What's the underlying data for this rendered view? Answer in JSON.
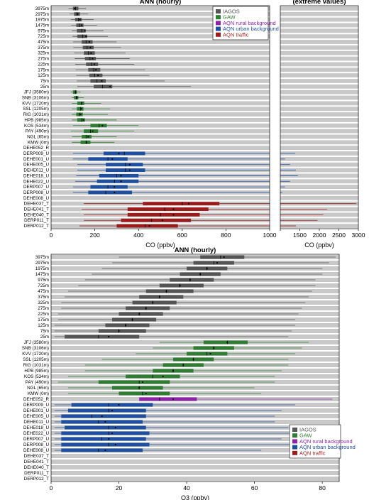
{
  "chart_data": [
    {
      "type": "boxplot",
      "title": "ANN (hourly)",
      "xlabel": "CO (ppbv)",
      "xlim": [
        0,
        1000
      ],
      "xticks": [
        "0",
        "200",
        "400",
        "600",
        "800",
        "1000"
      ],
      "categories": [
        "3975m",
        "2975m",
        "1975m",
        "1475m",
        "975m",
        "725m",
        "475m",
        "375m",
        "325m",
        "275m",
        "225m",
        "175m",
        "125m",
        "75m",
        "25m",
        "JFJ (3580m)",
        "SNB (3106m)",
        "KVV (1720m)",
        "SSL (1205m)",
        "RIG (1031m)",
        "HPB (985m)",
        "KOS (534m)",
        "PAY (490m)",
        "NGL (65m)",
        "KMW (0m)",
        "DEHE052_R",
        "DERP009_U",
        "DEHE001_U",
        "DEHE005_U",
        "DEHE011_U",
        "DEHE018_U",
        "DEHE022_U",
        "DERP007_U",
        "DERP008_U",
        "DEHE008_U",
        "DEHE037_T",
        "DEHE041_T",
        "DEHE040_T",
        "DERP011_T",
        "DERP012_T"
      ],
      "groups": [
        "IAGOS",
        "IAGOS",
        "IAGOS",
        "IAGOS",
        "IAGOS",
        "IAGOS",
        "IAGOS",
        "IAGOS",
        "IAGOS",
        "IAGOS",
        "IAGOS",
        "IAGOS",
        "IAGOS",
        "IAGOS",
        "IAGOS",
        "GAW",
        "GAW",
        "GAW",
        "GAW",
        "GAW",
        "GAW",
        "GAW",
        "GAW",
        "GAW",
        "GAW",
        "AQN rural background",
        "AQN urban background",
        "AQN urban background",
        "AQN urban background",
        "AQN urban background",
        "AQN urban background",
        "AQN urban background",
        "AQN urban background",
        "AQN urban background",
        "AQN urban background",
        "AQN traffic",
        "AQN traffic",
        "AQN traffic",
        "AQN traffic",
        "AQN traffic"
      ],
      "boxes": [
        [
          80,
          100,
          112,
          125,
          160
        ],
        [
          85,
          105,
          118,
          132,
          170
        ],
        [
          90,
          110,
          125,
          140,
          195
        ],
        [
          92,
          115,
          130,
          148,
          210
        ],
        [
          95,
          118,
          140,
          158,
          240
        ],
        [
          98,
          120,
          145,
          165,
          260
        ],
        [
          100,
          140,
          160,
          190,
          300
        ],
        [
          102,
          145,
          165,
          195,
          320
        ],
        [
          105,
          150,
          170,
          200,
          340
        ],
        [
          108,
          155,
          178,
          205,
          360
        ],
        [
          110,
          160,
          185,
          215,
          380
        ],
        [
          112,
          170,
          195,
          225,
          430
        ],
        [
          115,
          175,
          200,
          235,
          450
        ],
        [
          118,
          180,
          210,
          250,
          520
        ],
        [
          120,
          195,
          235,
          280,
          640
        ],
        [
          90,
          100,
          112,
          118,
          135
        ],
        [
          95,
          105,
          115,
          125,
          150
        ],
        [
          95,
          120,
          140,
          152,
          230
        ],
        [
          95,
          118,
          135,
          148,
          270
        ],
        [
          95,
          115,
          130,
          145,
          260
        ],
        [
          95,
          120,
          140,
          155,
          300
        ],
        [
          100,
          180,
          220,
          255,
          400
        ],
        [
          90,
          150,
          180,
          215,
          380
        ],
        [
          95,
          140,
          160,
          185,
          300
        ],
        [
          95,
          135,
          160,
          180,
          290
        ],
        null,
        [
          100,
          240,
          335,
          430,
          1000
        ],
        [
          100,
          170,
          260,
          350,
          1000
        ],
        [
          120,
          250,
          340,
          420,
          1000
        ],
        [
          120,
          250,
          340,
          430,
          1000
        ],
        [
          115,
          220,
          300,
          400,
          1000
        ],
        [
          110,
          210,
          290,
          400,
          1000
        ],
        [
          100,
          180,
          260,
          350,
          1000
        ],
        [
          100,
          170,
          250,
          370,
          1000
        ],
        null,
        [
          150,
          420,
          600,
          770,
          1000
        ],
        [
          140,
          350,
          520,
          720,
          1000
        ],
        [
          150,
          350,
          500,
          680,
          1000
        ],
        [
          150,
          320,
          460,
          640,
          1000
        ],
        [
          130,
          300,
          430,
          580,
          1000
        ]
      ],
      "means": [
        108,
        122,
        132,
        140,
        155,
        160,
        175,
        180,
        183,
        190,
        198,
        205,
        215,
        232,
        270,
        112,
        118,
        140,
        138,
        135,
        148,
        235,
        190,
        170,
        162,
        null,
        310,
        280,
        360,
        360,
        320,
        320,
        290,
        290,
        null,
        630,
        560,
        560,
        510,
        450
      ],
      "extreme_panel": {
        "title": "(extreme values)",
        "xlabel": "CO (ppbv)",
        "xlim": [
          1000,
          3000
        ],
        "xticks": [
          "1000",
          "1500",
          "2000",
          "2500",
          "3000"
        ],
        "whisker_max": [
          null,
          null,
          null,
          null,
          null,
          null,
          null,
          null,
          null,
          null,
          null,
          null,
          null,
          null,
          null,
          null,
          null,
          null,
          null,
          null,
          null,
          null,
          null,
          null,
          null,
          null,
          1380,
          1120,
          1250,
          1400,
          1450,
          1250,
          1120,
          1050,
          null,
          2950,
          2200,
          2100,
          1950,
          1400
        ]
      },
      "legend": [
        "IAGOS",
        "GAW",
        "AQN rural background",
        "AQN urban background",
        "AQN traffic"
      ],
      "legend_position": "top-right",
      "colors": {
        "IAGOS": "#555555",
        "GAW": "#2e7d32",
        "AQN rural background": "#8e24aa",
        "AQN urban background": "#1f4fa0",
        "AQN traffic": "#9b1c1c"
      }
    },
    {
      "type": "boxplot",
      "title": "ANN (hourly)",
      "xlabel": "O3 (ppbv)",
      "xlim": [
        0,
        85
      ],
      "xticks": [
        "0",
        "20",
        "40",
        "60",
        "80"
      ],
      "categories": [
        "3975m",
        "2975m",
        "1975m",
        "1475m",
        "975m",
        "725m",
        "475m",
        "375m",
        "325m",
        "275m",
        "225m",
        "175m",
        "125m",
        "75m",
        "25m",
        "JFJ (3580m)",
        "SNB (3106m)",
        "KVV (1720m)",
        "SSL (1205m)",
        "RIG (1031m)",
        "HPB (985m)",
        "KOS (534m)",
        "PAY (490m)",
        "NGL (65m)",
        "KMW (0m)",
        "DEHE052_R",
        "DERP009_U",
        "DEHE001_U",
        "DEHE005_U",
        "DEHE011_U",
        "DEHE018_U",
        "DEHE022_U",
        "DERP007_U",
        "DERP008_U",
        "DEHE008_U",
        "DEHE037_T",
        "DEHE041_T",
        "DEHE040_T",
        "DERP011_T",
        "DERP012_T"
      ],
      "groups": [
        "IAGOS",
        "IAGOS",
        "IAGOS",
        "IAGOS",
        "IAGOS",
        "IAGOS",
        "IAGOS",
        "IAGOS",
        "IAGOS",
        "IAGOS",
        "IAGOS",
        "IAGOS",
        "IAGOS",
        "IAGOS",
        "IAGOS",
        "GAW",
        "GAW",
        "GAW",
        "GAW",
        "GAW",
        "GAW",
        "GAW",
        "GAW",
        "GAW",
        "GAW",
        "AQN rural background",
        "AQN urban background",
        "AQN urban background",
        "AQN urban background",
        "AQN urban background",
        "AQN urban background",
        "AQN urban background",
        "AQN urban background",
        "AQN urban background",
        "AQN urban background",
        "AQN traffic",
        "AQN traffic",
        "AQN traffic",
        "AQN traffic",
        "AQN traffic"
      ],
      "boxes": [
        [
          20,
          44,
          50,
          57,
          84
        ],
        [
          18,
          42,
          48,
          54,
          82
        ],
        [
          15,
          40,
          46,
          52,
          80
        ],
        [
          12,
          38,
          44,
          50,
          80
        ],
        [
          10,
          35,
          41,
          48,
          78
        ],
        [
          8,
          32,
          38,
          45,
          78
        ],
        [
          5,
          28,
          34,
          42,
          77
        ],
        [
          4,
          26,
          32,
          39,
          76
        ],
        [
          3,
          24,
          30,
          37,
          75
        ],
        [
          3,
          22,
          28,
          35,
          74
        ],
        [
          2,
          20,
          26,
          33,
          73
        ],
        [
          2,
          18,
          24,
          31,
          72
        ],
        [
          1,
          16,
          22,
          29,
          72
        ],
        [
          1,
          14,
          20,
          28,
          71
        ],
        [
          1,
          4,
          14,
          26,
          70
        ],
        [
          32,
          45,
          52,
          58,
          76
        ],
        [
          30,
          42,
          48,
          54,
          74
        ],
        [
          25,
          40,
          46,
          52,
          72
        ],
        [
          15,
          36,
          42,
          48,
          70
        ],
        [
          10,
          33,
          39,
          45,
          70
        ],
        [
          10,
          30,
          36,
          42,
          68
        ],
        [
          5,
          22,
          30,
          38,
          66
        ],
        [
          2,
          14,
          26,
          35,
          66
        ],
        [
          5,
          18,
          26,
          33,
          60
        ],
        [
          5,
          20,
          27,
          35,
          62
        ],
        [
          30,
          26,
          32,
          43,
          83
        ],
        [
          1,
          6,
          17,
          30,
          72
        ],
        [
          1,
          5,
          17,
          28,
          68
        ],
        [
          1,
          3,
          12,
          28,
          66
        ],
        [
          1,
          3,
          14,
          27,
          66
        ],
        [
          1,
          4,
          17,
          28,
          70
        ],
        [
          1,
          3,
          17,
          29,
          72
        ],
        [
          1,
          3,
          15,
          28,
          68
        ],
        [
          1,
          3,
          17,
          29,
          72
        ],
        [
          1,
          3,
          14,
          27,
          62
        ],
        null,
        null,
        null,
        null,
        null
      ],
      "means": [
        51,
        49,
        46,
        44,
        41,
        38,
        34,
        32,
        30,
        28,
        26,
        24,
        22,
        20,
        17,
        52,
        48,
        47,
        42,
        39,
        36,
        33,
        27,
        26,
        28,
        36,
        20,
        18,
        15,
        16,
        19,
        18,
        17,
        19,
        16,
        null,
        null,
        null,
        null,
        null
      ],
      "legend": [
        "IAGOS",
        "GAW",
        "AQN rural background",
        "AQN urban background",
        "AQN traffic"
      ],
      "legend_position": "bottom-right",
      "colors": {
        "IAGOS": "#555555",
        "GAW": "#2e7d32",
        "AQN rural background": "#8e24aa",
        "AQN urban background": "#1f4fa0",
        "AQN traffic": "#9b1c1c"
      }
    }
  ]
}
